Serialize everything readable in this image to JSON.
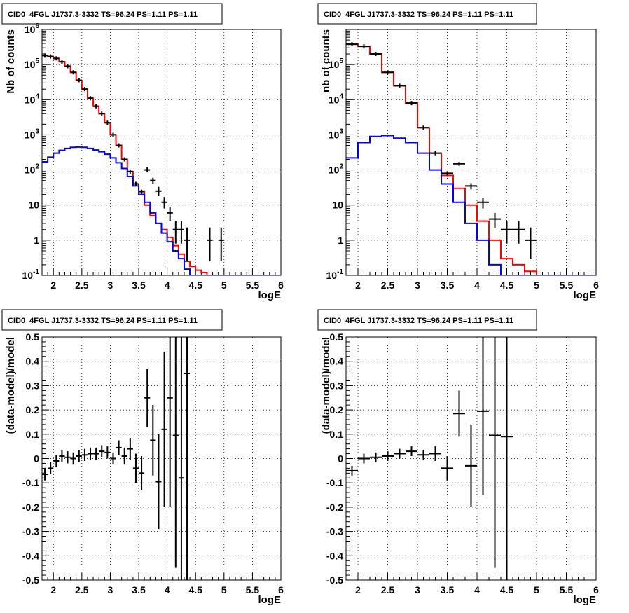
{
  "chart_data": [
    {
      "type": "line",
      "title": "CID0_4FGL J1737.3-3332 TS=96.24 PS=1.11 PS=1.11",
      "xlabel": "logE",
      "ylabel": "Nb of counts",
      "xlim": [
        1.8,
        6
      ],
      "ylim": [
        0.1,
        1000000
      ],
      "yscale": "log",
      "grid": true,
      "x_ticks": [
        "2",
        "2.5",
        "3",
        "3.5",
        "4",
        "4.5",
        "5",
        "5.5",
        "6"
      ],
      "y_ticks": [
        {
          "base": "10",
          "exp": "-1"
        },
        {
          "base": "1",
          "exp": ""
        },
        {
          "base": "10",
          "exp": ""
        },
        {
          "base": "10",
          "exp": "2"
        },
        {
          "base": "10",
          "exp": "3"
        },
        {
          "base": "10",
          "exp": "4"
        },
        {
          "base": "10",
          "exp": "5"
        },
        {
          "base": "10",
          "exp": "6"
        }
      ],
      "bin_edges": [
        1.8,
        1.9,
        2.0,
        2.1,
        2.2,
        2.3,
        2.4,
        2.5,
        2.6,
        2.7,
        2.8,
        2.9,
        3.0,
        3.1,
        3.2,
        3.3,
        3.4,
        3.5,
        3.6,
        3.7,
        3.8,
        3.9,
        4.0,
        4.1,
        4.2,
        4.3,
        4.4,
        4.5,
        4.6,
        4.7,
        4.8,
        4.9,
        5.0,
        5.1,
        5.2,
        5.3,
        5.4,
        5.5,
        5.6,
        5.7,
        5.8,
        5.9,
        6.0
      ],
      "series": [
        {
          "kind": "step",
          "color": "#ff0000",
          "values": [
            180000,
            170000,
            150000,
            120000,
            90000,
            60000,
            35000,
            20000,
            11000,
            6500,
            4000,
            2200,
            1000,
            500,
            200,
            90,
            40,
            25,
            10,
            5,
            3,
            2,
            1.2,
            0.7,
            0.4,
            0.25,
            0.18,
            0.14,
            0.12,
            0.1,
            0.1,
            0.1,
            0.1,
            0.1,
            0.1,
            0.1,
            0.1,
            0.1,
            0.1,
            0.1,
            0.1,
            0.1
          ]
        },
        {
          "kind": "step",
          "color": "#0000ff",
          "values": [
            170,
            230,
            300,
            360,
            410,
            440,
            450,
            440,
            410,
            370,
            330,
            280,
            220,
            160,
            110,
            65,
            35,
            20,
            12,
            6,
            3,
            1.6,
            0.9,
            0.5,
            0.3,
            0.15,
            0.1,
            0.1,
            0.1,
            0.1,
            0.1,
            0.1,
            0.1,
            0.1,
            0.1,
            0.1,
            0.1,
            0.1,
            0.1,
            0.1,
            0.1,
            0.1
          ]
        },
        {
          "kind": "points",
          "color": "#000000",
          "points": [
            {
              "x": 1.85,
              "y": 180000
            },
            {
              "x": 1.95,
              "y": 170000
            },
            {
              "x": 2.05,
              "y": 150000
            },
            {
              "x": 2.15,
              "y": 120000
            },
            {
              "x": 2.25,
              "y": 90000
            },
            {
              "x": 2.35,
              "y": 60000
            },
            {
              "x": 2.45,
              "y": 36000
            },
            {
              "x": 2.55,
              "y": 20000
            },
            {
              "x": 2.65,
              "y": 11000
            },
            {
              "x": 2.75,
              "y": 6500
            },
            {
              "x": 2.85,
              "y": 4000
            },
            {
              "x": 2.95,
              "y": 2200
            },
            {
              "x": 3.05,
              "y": 1000
            },
            {
              "x": 3.15,
              "y": 500
            },
            {
              "x": 3.25,
              "y": 200
            },
            {
              "x": 3.35,
              "y": 90
            },
            {
              "x": 3.45,
              "y": 40
            },
            {
              "x": 3.55,
              "y": 24
            },
            {
              "x": 3.65,
              "y": 100,
              "lo": 85,
              "hi": 118
            },
            {
              "x": 3.75,
              "y": 50,
              "lo": 40,
              "hi": 60
            },
            {
              "x": 3.85,
              "y": 25,
              "lo": 18,
              "hi": 33
            },
            {
              "x": 3.95,
              "y": 12,
              "lo": 8,
              "hi": 17
            },
            {
              "x": 4.05,
              "y": 6,
              "lo": 3.6,
              "hi": 9
            },
            {
              "x": 4.15,
              "y": 2,
              "lo": 0.8,
              "hi": 3.5
            },
            {
              "x": 4.25,
              "y": 2,
              "lo": 0.8,
              "hi": 3.5
            },
            {
              "x": 4.35,
              "y": 1,
              "lo": 0.25,
              "hi": 2.3
            },
            {
              "x": 4.75,
              "y": 1,
              "lo": 0.25,
              "hi": 2.3
            },
            {
              "x": 4.95,
              "y": 1,
              "lo": 0.25,
              "hi": 2.3
            }
          ]
        }
      ]
    },
    {
      "type": "line",
      "title": "CID0_4FGL J1737.3-3332 TS=96.24 PS=1.11 PS=1.11",
      "xlabel": "logE",
      "ylabel": "nb of counts",
      "xlim": [
        1.8,
        6
      ],
      "ylim": [
        0.1,
        1000000
      ],
      "yscale": "log",
      "grid": true,
      "x_ticks": [
        "2",
        "2.5",
        "3",
        "3.5",
        "4",
        "4.5",
        "5",
        "5.5",
        "6"
      ],
      "y_ticks": [
        {
          "base": "10",
          "exp": "-1"
        },
        {
          "base": "1",
          "exp": ""
        },
        {
          "base": "10",
          "exp": ""
        },
        {
          "base": "10",
          "exp": "2"
        },
        {
          "base": "10",
          "exp": "3"
        },
        {
          "base": "10",
          "exp": "4"
        },
        {
          "base": "10",
          "exp": "5"
        }
      ],
      "bin_edges": [
        1.8,
        2.0,
        2.2,
        2.4,
        2.6,
        2.8,
        3.0,
        3.2,
        3.4,
        3.6,
        3.8,
        4.0,
        4.2,
        4.4,
        4.6,
        4.8,
        5.0,
        5.2,
        5.4,
        5.6,
        5.8,
        6.0
      ],
      "series": [
        {
          "kind": "step",
          "color": "#ff0000",
          "values": [
            380000,
            330000,
            200000,
            60000,
            25000,
            8000,
            1600,
            300,
            70,
            30,
            10,
            3.5,
            1,
            0.3,
            0.2,
            0.13,
            0.1,
            0.1,
            0.1,
            0.1,
            0.1
          ]
        },
        {
          "kind": "step",
          "color": "#0000ff",
          "values": [
            220,
            600,
            900,
            950,
            800,
            600,
            300,
            100,
            40,
            12,
            3,
            1,
            0.2,
            0.1,
            0.1,
            0.1,
            0.1,
            0.1,
            0.1,
            0.1,
            0.1
          ]
        },
        {
          "kind": "points",
          "color": "#000000",
          "points": [
            {
              "x": 1.9,
              "y": 380000
            },
            {
              "x": 2.1,
              "y": 330000
            },
            {
              "x": 2.3,
              "y": 200000
            },
            {
              "x": 2.5,
              "y": 60000
            },
            {
              "x": 2.7,
              "y": 25000
            },
            {
              "x": 2.9,
              "y": 8000
            },
            {
              "x": 3.1,
              "y": 1600
            },
            {
              "x": 3.3,
              "y": 300
            },
            {
              "x": 3.5,
              "y": 80
            },
            {
              "x": 3.7,
              "y": 150,
              "lo": 130,
              "hi": 170
            },
            {
              "x": 3.9,
              "y": 35,
              "lo": 28,
              "hi": 42
            },
            {
              "x": 4.1,
              "y": 12,
              "lo": 8,
              "hi": 16
            },
            {
              "x": 4.3,
              "y": 4,
              "lo": 2.2,
              "hi": 6
            },
            {
              "x": 4.5,
              "y": 2,
              "lo": 0.8,
              "hi": 3.5
            },
            {
              "x": 4.7,
              "y": 2,
              "lo": 0.8,
              "hi": 3.5
            },
            {
              "x": 4.9,
              "y": 1,
              "lo": 0.3,
              "hi": 2.3
            }
          ]
        }
      ]
    },
    {
      "type": "scatter",
      "title": "CID0_4FGL J1737.3-3332 TS=96.24 PS=1.11 PS=1.11",
      "xlabel": "logE",
      "ylabel": "(data-model)/model",
      "xlim": [
        1.8,
        6
      ],
      "ylim": [
        -0.5,
        0.5
      ],
      "grid": true,
      "x_ticks": [
        "2",
        "2.5",
        "3",
        "3.5",
        "4",
        "4.5",
        "5",
        "5.5",
        "6"
      ],
      "y_ticks": [
        "-0.5",
        "-0.4",
        "-0.3",
        "-0.2",
        "-0.1",
        "0",
        "0.1",
        "0.2",
        "0.3",
        "0.4",
        "0.5"
      ],
      "series": [
        {
          "kind": "points",
          "color": "#000000",
          "xerr": 0.05,
          "points": [
            {
              "x": 1.85,
              "y": -0.065,
              "lo": -0.09,
              "hi": -0.04
            },
            {
              "x": 1.95,
              "y": -0.04,
              "lo": -0.065,
              "hi": -0.015
            },
            {
              "x": 2.05,
              "y": -0.01,
              "lo": -0.035,
              "hi": 0.015
            },
            {
              "x": 2.15,
              "y": 0.01,
              "lo": -0.015,
              "hi": 0.035
            },
            {
              "x": 2.25,
              "y": 0.005,
              "lo": -0.02,
              "hi": 0.03
            },
            {
              "x": 2.35,
              "y": 0.0,
              "lo": -0.025,
              "hi": 0.025
            },
            {
              "x": 2.45,
              "y": 0.01,
              "lo": -0.015,
              "hi": 0.035
            },
            {
              "x": 2.55,
              "y": 0.015,
              "lo": -0.01,
              "hi": 0.04
            },
            {
              "x": 2.65,
              "y": 0.02,
              "lo": -0.005,
              "hi": 0.045
            },
            {
              "x": 2.75,
              "y": 0.02,
              "lo": -0.005,
              "hi": 0.045
            },
            {
              "x": 2.85,
              "y": 0.03,
              "lo": 0.005,
              "hi": 0.055
            },
            {
              "x": 2.95,
              "y": 0.025,
              "lo": 0.0,
              "hi": 0.05
            },
            {
              "x": 3.05,
              "y": 0.0,
              "lo": -0.025,
              "hi": 0.025
            },
            {
              "x": 3.15,
              "y": 0.045,
              "lo": 0.015,
              "hi": 0.075
            },
            {
              "x": 3.25,
              "y": 0.01,
              "lo": -0.025,
              "hi": 0.045
            },
            {
              "x": 3.35,
              "y": 0.04,
              "lo": -0.005,
              "hi": 0.085
            },
            {
              "x": 3.45,
              "y": -0.04,
              "lo": -0.1,
              "hi": 0.02
            },
            {
              "x": 3.55,
              "y": -0.06,
              "lo": -0.13,
              "hi": 0.01
            },
            {
              "x": 3.65,
              "y": 0.25,
              "lo": 0.13,
              "hi": 0.37
            },
            {
              "x": 3.75,
              "y": 0.075,
              "lo": -0.07,
              "hi": 0.22
            },
            {
              "x": 3.85,
              "y": -0.095,
              "lo": -0.29,
              "hi": 0.1
            },
            {
              "x": 3.95,
              "y": 0.12,
              "lo": -0.2,
              "hi": 0.44
            },
            {
              "x": 4.05,
              "y": 0.25,
              "lo": -0.2,
              "hi": 0.6
            },
            {
              "x": 4.15,
              "y": 0.095,
              "lo": -0.45,
              "hi": 0.6
            },
            {
              "x": 4.25,
              "y": -0.08,
              "lo": -0.6,
              "hi": 0.6
            },
            {
              "x": 4.35,
              "y": 0.35,
              "lo": -0.6,
              "hi": 0.6
            }
          ]
        }
      ]
    },
    {
      "type": "scatter",
      "title": "CID0_4FGL J1737.3-3332 TS=96.24 PS=1.11 PS=1.11",
      "xlabel": "logE",
      "ylabel": "(data-model)/model",
      "xlim": [
        1.8,
        6
      ],
      "ylim": [
        -0.5,
        0.5
      ],
      "grid": true,
      "x_ticks": [
        "2",
        "2.5",
        "3",
        "3.5",
        "4",
        "4.5",
        "5",
        "5.5",
        "6"
      ],
      "y_ticks": [
        "-0.5",
        "-0.4",
        "-0.3",
        "-0.2",
        "-0.1",
        "0",
        "0.1",
        "0.2",
        "0.3",
        "0.4",
        "0.5"
      ],
      "series": [
        {
          "kind": "points",
          "color": "#000000",
          "xerr": 0.1,
          "points": [
            {
              "x": 1.9,
              "y": -0.05,
              "lo": -0.07,
              "hi": -0.03
            },
            {
              "x": 2.1,
              "y": 0.0,
              "lo": -0.02,
              "hi": 0.02
            },
            {
              "x": 2.3,
              "y": 0.005,
              "lo": -0.015,
              "hi": 0.025
            },
            {
              "x": 2.5,
              "y": 0.01,
              "lo": -0.01,
              "hi": 0.03
            },
            {
              "x": 2.7,
              "y": 0.02,
              "lo": 0.0,
              "hi": 0.04
            },
            {
              "x": 2.9,
              "y": 0.03,
              "lo": 0.01,
              "hi": 0.05
            },
            {
              "x": 3.1,
              "y": 0.015,
              "lo": -0.005,
              "hi": 0.035
            },
            {
              "x": 3.3,
              "y": 0.02,
              "lo": -0.01,
              "hi": 0.05
            },
            {
              "x": 3.5,
              "y": -0.04,
              "lo": -0.09,
              "hi": 0.01
            },
            {
              "x": 3.7,
              "y": 0.185,
              "lo": 0.09,
              "hi": 0.28
            },
            {
              "x": 3.9,
              "y": -0.03,
              "lo": -0.2,
              "hi": 0.14
            },
            {
              "x": 4.1,
              "y": 0.195,
              "lo": -0.15,
              "hi": 0.6
            },
            {
              "x": 4.3,
              "y": 0.095,
              "lo": -0.45,
              "hi": 0.6
            },
            {
              "x": 4.5,
              "y": 0.09,
              "lo": -0.6,
              "hi": 0.6
            }
          ]
        }
      ]
    }
  ]
}
